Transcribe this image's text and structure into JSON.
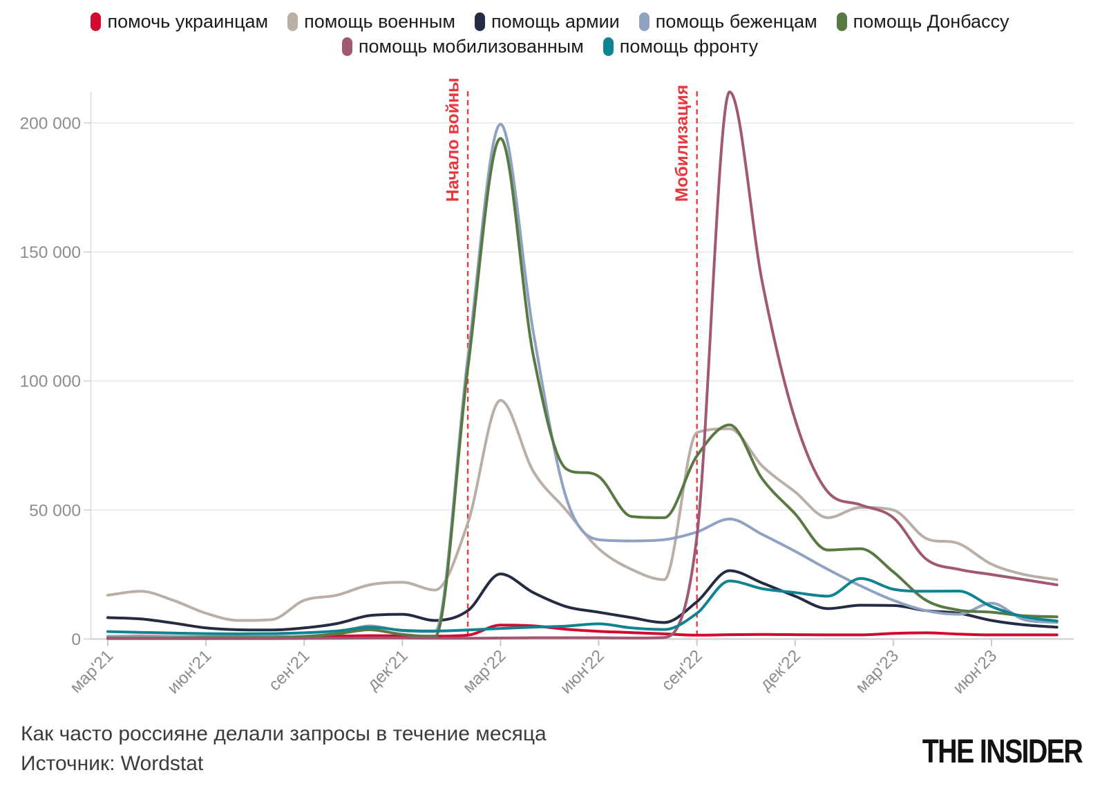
{
  "legend": {
    "rows": [
      5,
      2
    ],
    "items": [
      {
        "label": "помочь украинцам",
        "color": "#d20a2e"
      },
      {
        "label": "помощь военным",
        "color": "#b9afa7"
      },
      {
        "label": "помощь армии",
        "color": "#262b44"
      },
      {
        "label": "помощь беженцам",
        "color": "#8fa2c2"
      },
      {
        "label": "помощь Донбассу",
        "color": "#587a42"
      },
      {
        "label": "помощь мобилизованным",
        "color": "#a05873"
      },
      {
        "label": "помощь фронту",
        "color": "#0f8490"
      }
    ]
  },
  "chart_data": {
    "type": "line",
    "title": "Как часто россияне делали запросы в течение месяца",
    "x": [
      "мар'21",
      "апр'21",
      "май'21",
      "июн'21",
      "июл'21",
      "авг'21",
      "сен'21",
      "окт'21",
      "ноя'21",
      "дек'21",
      "янв'22",
      "фев'22",
      "мар'22",
      "апр'22",
      "май'22",
      "июн'22",
      "июл'22",
      "авг'22",
      "сен'22",
      "окт'22",
      "ноя'22",
      "дек'22",
      "янв'23",
      "фев'23",
      "мар'23",
      "апр'23",
      "май'23",
      "июн'23",
      "июл'23",
      "авг'23"
    ],
    "x_tick_indices": [
      0,
      3,
      6,
      9,
      12,
      15,
      18,
      21,
      24,
      27
    ],
    "x_tick_labels": [
      "мар'21",
      "июн'21",
      "сен'21",
      "дек'21",
      "мар'22",
      "июн'22",
      "сен'22",
      "дек'22",
      "мар'23",
      "июн'23"
    ],
    "ylim": [
      0,
      215000
    ],
    "grid": "horizontal",
    "legend_position": "top",
    "y_ticks": [
      {
        "value": 0,
        "label": "0"
      },
      {
        "value": 50000,
        "label": "50 000"
      },
      {
        "value": 100000,
        "label": "100 000"
      },
      {
        "value": 150000,
        "label": "150 000"
      },
      {
        "value": 200000,
        "label": "200 000"
      }
    ],
    "annotations": [
      {
        "label": "Начало войны",
        "x_index": 11
      },
      {
        "label": "Мобилизация",
        "x_index": 18
      }
    ],
    "annotation_color": "#e8373d",
    "series": [
      {
        "name": "помочь украинцам",
        "color": "#d20a2e",
        "values": [
          1000,
          1100,
          1000,
          900,
          900,
          900,
          1000,
          1100,
          1300,
          1200,
          1100,
          1500,
          5400,
          5100,
          3800,
          3000,
          2500,
          2000,
          1500,
          1700,
          1800,
          1700,
          1600,
          1600,
          2200,
          2400,
          1900,
          1600,
          1600,
          1600
        ]
      },
      {
        "name": "помощь военным",
        "color": "#b9afa7",
        "values": [
          17000,
          18500,
          15000,
          10000,
          7200,
          7500,
          15000,
          17000,
          21000,
          22000,
          19000,
          45000,
          92500,
          65000,
          50000,
          35000,
          27000,
          23000,
          80000,
          81500,
          67000,
          57000,
          47000,
          51000,
          50000,
          39000,
          37000,
          29000,
          25000,
          23000
        ]
      },
      {
        "name": "помощь армии",
        "color": "#262b44",
        "values": [
          8300,
          7800,
          6200,
          4300,
          3600,
          3500,
          4300,
          6000,
          9100,
          9600,
          7200,
          11000,
          25200,
          18000,
          12600,
          10400,
          8300,
          6400,
          14500,
          26500,
          21700,
          16600,
          11800,
          13100,
          13000,
          11000,
          10000,
          7200,
          5500,
          4600
        ]
      },
      {
        "name": "помощь беженцам",
        "color": "#8fa2c2",
        "values": [
          1000,
          1000,
          900,
          800,
          800,
          800,
          1100,
          2200,
          5100,
          3200,
          2900,
          109000,
          199500,
          119000,
          55000,
          38500,
          38000,
          38500,
          41500,
          46500,
          40500,
          34000,
          27000,
          20600,
          15000,
          11000,
          9600,
          13900,
          7500,
          6400
        ]
      },
      {
        "name": "помощь Донбассу",
        "color": "#587a42",
        "values": [
          400,
          400,
          400,
          500,
          500,
          500,
          900,
          2000,
          3600,
          1800,
          1000,
          105000,
          194000,
          110000,
          66000,
          63000,
          47500,
          47000,
          71000,
          83000,
          62000,
          48500,
          34500,
          35000,
          26000,
          15000,
          11200,
          10400,
          9000,
          8600
        ]
      },
      {
        "name": "помощь мобилизованным",
        "color": "#a05873",
        "values": [
          200,
          200,
          200,
          200,
          200,
          200,
          250,
          300,
          400,
          400,
          300,
          300,
          400,
          500,
          500,
          500,
          400,
          600,
          40000,
          212000,
          138000,
          85000,
          57000,
          52000,
          47000,
          31000,
          27000,
          25000,
          23000,
          21000
        ]
      },
      {
        "name": "помощь фронту",
        "color": "#0f8490",
        "values": [
          2900,
          2600,
          2300,
          2100,
          2000,
          2100,
          2400,
          3100,
          4600,
          3400,
          3100,
          3500,
          4100,
          4600,
          5000,
          5900,
          4300,
          3700,
          10000,
          22500,
          19500,
          18000,
          16600,
          23500,
          19300,
          18500,
          18600,
          12600,
          8600,
          7000
        ]
      }
    ]
  },
  "footer": {
    "title": "Как часто россияне делали запросы в течение месяца",
    "source": "Источник: Wordstat",
    "logo": "THE INSIDER"
  }
}
